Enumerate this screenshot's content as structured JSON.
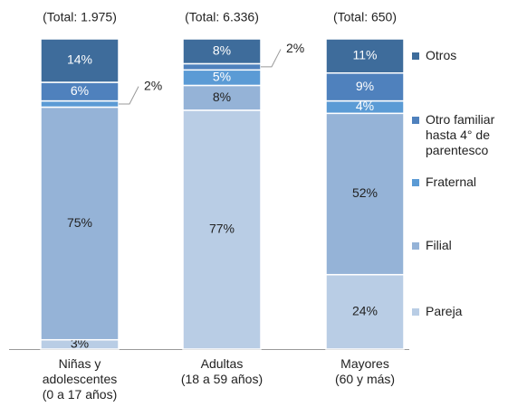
{
  "chart_data": {
    "type": "stacked_bar",
    "categories": [
      "Niñas y\nadolescentes\n(0 a 17 años)",
      "Adultas\n(18 a 59 años)",
      "Mayores\n(60 y más)"
    ],
    "totals": [
      "(Total: 1.975)",
      "(Total: 6.336)",
      "(Total: 650)"
    ],
    "series": [
      {
        "name": "Pareja",
        "color": "#b9cde5",
        "values": [
          3,
          77,
          24
        ],
        "value_labels": [
          "3%",
          "77%",
          "24%"
        ]
      },
      {
        "name": "Filial",
        "color": "#95b3d7",
        "values": [
          75,
          8,
          52
        ],
        "value_labels": [
          "75%",
          "8%",
          "52%"
        ]
      },
      {
        "name": "Fraternal",
        "color": "#5b9bd5",
        "values": [
          2,
          5,
          4
        ],
        "value_labels": [
          "2%",
          "5%",
          "4%"
        ]
      },
      {
        "name": "Otro familiar\nhasta 4° de\nparentesco",
        "color": "#4f81bd",
        "values": [
          6,
          2,
          9
        ],
        "value_labels": [
          "6%",
          "2%",
          "9%"
        ]
      },
      {
        "name": "Otros",
        "color": "#3e6c9b",
        "values": [
          14,
          8,
          11
        ],
        "value_labels": [
          "14%",
          "8%",
          "11%"
        ]
      }
    ],
    "legend": "right"
  }
}
